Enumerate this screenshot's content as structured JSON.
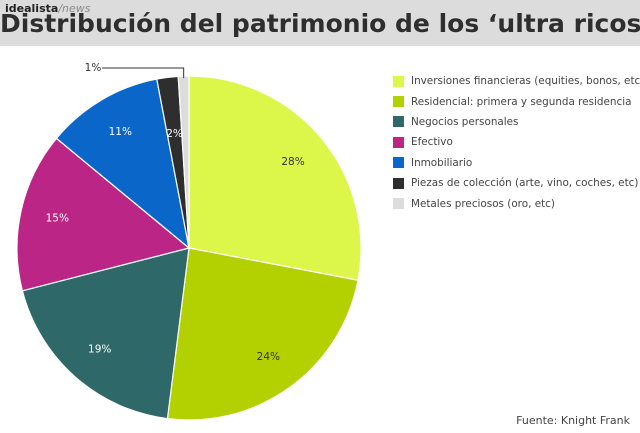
{
  "brand": {
    "name": "idealista",
    "suffix": "/news"
  },
  "chart_data": {
    "type": "pie",
    "title": "Distribución del patrimonio de los ‘ultra ricos’",
    "source": "Fuente: Knight Frank",
    "legend_position": "right",
    "slices": [
      {
        "label": "Inversiones financieras (equities, bonos, etc)",
        "value": 28,
        "value_label": "28%",
        "color": "#dcf74a"
      },
      {
        "label": "Residencial: primera y segunda residencia",
        "value": 24,
        "value_label": "24%",
        "color": "#b3d100"
      },
      {
        "label": "Negocios personales",
        "value": 19,
        "value_label": "19%",
        "color": "#2f6868"
      },
      {
        "label": "Efectivo",
        "value": 15,
        "value_label": "15%",
        "color": "#bb2686"
      },
      {
        "label": "Inmobiliario",
        "value": 11,
        "value_label": "11%",
        "color": "#0a67c9"
      },
      {
        "label": "Piezas de colección (arte, vino, coches, etc)",
        "value": 2,
        "value_label": "2%",
        "color": "#2e2e2e"
      },
      {
        "label": "Metales preciosos (oro, etc)",
        "value": 1,
        "value_label": "1%",
        "color": "#dcdcdc"
      }
    ]
  }
}
